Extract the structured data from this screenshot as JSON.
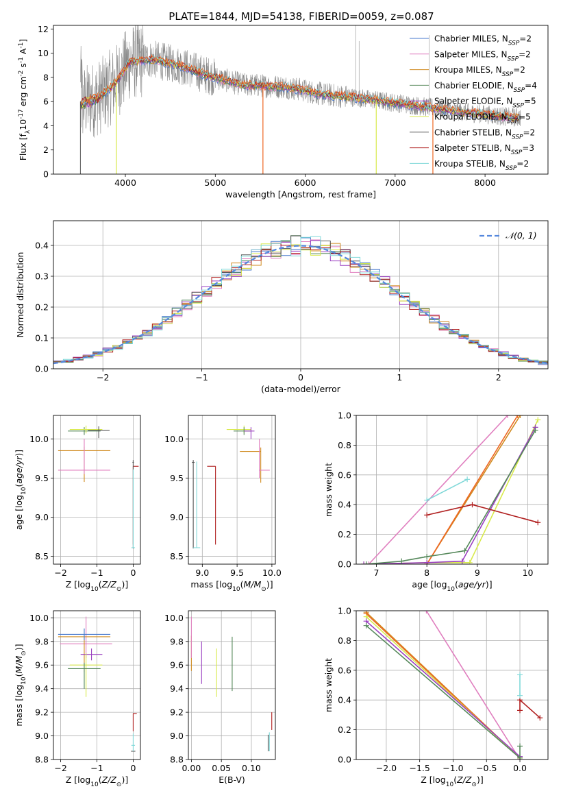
{
  "figure": {
    "title": "PLATE=1844, MJD=54138, FIBERID=0059, z=0.087"
  },
  "colors": {
    "Chabrier MILES": "#4477cc",
    "Salpeter MILES": "#e07fbf",
    "Kroupa MILES": "#d08a1e",
    "Chabrier ELODIE": "#55885a",
    "Salpeter ELODIE": "#9a3fc0",
    "Kroupa ELODIE": "#d8ea4a",
    "Chabrier STELIB": "#555555",
    "Salpeter STELIB": "#b01f1f",
    "Kroupa STELIB": "#7fd8d8",
    "orange_model": "#ee6622",
    "spectrum_gray": "#888888",
    "gaussian": "#5588dd"
  },
  "chart_data": [
    {
      "id": "spectrum",
      "type": "line",
      "xlabel": "wavelength [Angstrom, rest frame]",
      "ylabel_parts": [
        "Flux [f",
        "λ",
        "10",
        "-17",
        " erg cm",
        "-2",
        " s",
        "-1",
        " A",
        "-1",
        "]"
      ],
      "xlim": [
        3200,
        8700
      ],
      "ylim": [
        0,
        12.3
      ],
      "xticks": [
        4000,
        5000,
        6000,
        7000,
        8000
      ],
      "yticks": [
        0,
        2,
        4,
        6,
        8,
        10,
        12
      ],
      "continuum_anchors": [
        [
          3500,
          5.8
        ],
        [
          3700,
          6.3
        ],
        [
          3900,
          7.6
        ],
        [
          4050,
          9.3
        ],
        [
          4300,
          9.5
        ],
        [
          4600,
          9.0
        ],
        [
          4900,
          8.2
        ],
        [
          5300,
          7.4
        ],
        [
          5800,
          7.2
        ],
        [
          6200,
          6.6
        ],
        [
          6600,
          6.3
        ],
        [
          7000,
          5.9
        ],
        [
          7400,
          5.5
        ],
        [
          7800,
          5.1
        ],
        [
          8300,
          4.7
        ]
      ],
      "model_dips": [
        [
          3900,
          "Kroupa ELODIE"
        ],
        [
          5530,
          "orange_model"
        ],
        [
          6790,
          "Kroupa ELODIE"
        ],
        [
          7420,
          "orange_model"
        ]
      ],
      "legend": {
        "placement": "upper right",
        "entries": [
          {
            "label": "Chabrier MILES",
            "n": "2"
          },
          {
            "label": "Salpeter MILES",
            "n": "2"
          },
          {
            "label": "Kroupa MILES",
            "n": "2"
          },
          {
            "label": "Chabrier ELODIE",
            "n": "4"
          },
          {
            "label": "Salpeter ELODIE",
            "n": "5"
          },
          {
            "label": "Kroupa ELODIE",
            "n": "5"
          },
          {
            "label": "Chabrier STELIB",
            "n": "2"
          },
          {
            "label": "Salpeter STELIB",
            "n": "3"
          },
          {
            "label": "Kroupa STELIB",
            "n": "2"
          }
        ],
        "n_prefix": "N",
        "n_sub": "SSP"
      }
    },
    {
      "id": "residuals",
      "type": "histogram",
      "xlabel": "(data-model)/error",
      "ylabel": "Normed distribution",
      "xlim": [
        -2.5,
        2.5
      ],
      "ylim": [
        0,
        0.48
      ],
      "xticks": [
        -2,
        -1,
        0,
        1,
        2
      ],
      "yticks": [
        0.0,
        0.1,
        0.2,
        0.3,
        0.4
      ],
      "bin_width": 0.1,
      "bin_start": -2.5,
      "legend": {
        "label": "𝒩(0, 1)",
        "placement": "upper right",
        "style": "dashed"
      }
    },
    {
      "id": "age_vs_Z",
      "type": "errorbar",
      "xlabel": "Z [log10(Z/Z⊙)]",
      "ylabel": "age  [log10(age/yr)]",
      "xlim": [
        -2.2,
        0.2
      ],
      "ylim": [
        8.4,
        10.3
      ],
      "xticks": [
        -2,
        -1,
        0
      ],
      "yticks": [
        8.5,
        9.0,
        9.5,
        10.0
      ],
      "points": [
        {
          "model": "Kroupa MILES",
          "x": -1.35,
          "y": 9.85,
          "xerr": [
            0.72,
            0.72
          ],
          "yerr": [
            0.4,
            0.05
          ]
        },
        {
          "model": "Salpeter MILES",
          "x": -1.35,
          "y": 9.6,
          "xerr": [
            0.72,
            0.72
          ],
          "yerr": [
            0.05,
            0.4
          ]
        },
        {
          "model": "Chabrier ELODIE",
          "x": -1.35,
          "y": 10.1,
          "xerr": [
            0.45,
            0.45
          ],
          "yerr": [
            0.05,
            0.05
          ]
        },
        {
          "model": "Kroupa ELODIE",
          "x": -1.3,
          "y": 10.12,
          "xerr": [
            0.45,
            0.45
          ],
          "yerr": [
            0.05,
            0.05
          ]
        },
        {
          "model": "Chabrier STELIB",
          "x": -0.95,
          "y": 10.11,
          "xerr": [
            0.3,
            0.3
          ],
          "yerr": [
            0.1,
            0.05
          ]
        },
        {
          "model": "Salpeter STELIB",
          "x": 0.0,
          "y": 9.65,
          "xerr": [
            0.0,
            0.15
          ],
          "yerr": [
            1.0,
            0.0
          ]
        },
        {
          "model": "Chabrier STELIB",
          "x": 0.0,
          "y": 9.7,
          "xerr": [
            0.02,
            0.02
          ],
          "yerr": [
            1.1,
            0.03
          ]
        },
        {
          "model": "Kroupa STELIB",
          "x": 0.0,
          "y": 8.61,
          "xerr": [
            0.05,
            0.05
          ],
          "yerr": [
            0.0,
            1.0
          ]
        }
      ]
    },
    {
      "id": "age_vs_mass",
      "type": "errorbar",
      "xlabel": "mass [log10(M/M⊙)]",
      "ylabel": "",
      "xlim": [
        8.8,
        10.05
      ],
      "ylim": [
        8.4,
        10.3
      ],
      "xticks": [
        9.0,
        9.5,
        10.0
      ],
      "yticks": [
        8.5,
        9.0,
        9.5,
        10.0
      ],
      "points": [
        {
          "model": "Kroupa ELODIE",
          "x": 9.6,
          "y": 10.12,
          "xerr": [
            0.25,
            0.1
          ],
          "yerr": [
            0.05,
            0.05
          ]
        },
        {
          "model": "Chabrier ELODIE",
          "x": 9.6,
          "y": 10.1,
          "xerr": [
            0.15,
            0.1
          ],
          "yerr": [
            0.05,
            0.05
          ]
        },
        {
          "model": "Salpeter ELODIE",
          "x": 9.7,
          "y": 10.1,
          "xerr": [
            0.1,
            0.05
          ],
          "yerr": [
            0.1,
            0.05
          ]
        },
        {
          "model": "Kroupa MILES",
          "x": 9.84,
          "y": 9.84,
          "xerr": [
            0.3,
            0.0
          ],
          "yerr": [
            0.4,
            0.05
          ]
        },
        {
          "model": "Salpeter MILES",
          "x": 9.82,
          "y": 9.6,
          "xerr": [
            0.0,
            0.15
          ],
          "yerr": [
            0.1,
            0.4
          ]
        },
        {
          "model": "Salpeter STELIB",
          "x": 9.19,
          "y": 9.65,
          "xerr": [
            0.12,
            0.0
          ],
          "yerr": [
            1.0,
            0.0
          ]
        },
        {
          "model": "Chabrier STELIB",
          "x": 8.87,
          "y": 9.7,
          "xerr": [
            0.02,
            0.02
          ],
          "yerr": [
            1.1,
            0.03
          ]
        },
        {
          "model": "Kroupa STELIB",
          "x": 8.92,
          "y": 8.61,
          "xerr": [
            0.05,
            0.05
          ],
          "yerr": [
            0.0,
            1.1
          ]
        }
      ]
    },
    {
      "id": "weight_vs_age",
      "type": "line",
      "xlabel": "age  [log10(age/yr)]",
      "ylabel": "mass weight",
      "xlim": [
        6.6,
        10.4
      ],
      "ylim": [
        0,
        1.0
      ],
      "xticks": [
        7,
        8,
        9,
        10
      ],
      "yticks": [
        0.0,
        0.2,
        0.4,
        0.6,
        0.8,
        1.0
      ],
      "series": [
        {
          "model": "Salpeter MILES",
          "x": [
            6.85,
            9.6
          ],
          "y": [
            0.0,
            1.0
          ]
        },
        {
          "model": "Kroupa MILES",
          "x": [
            8.0,
            9.85
          ],
          "y": [
            0.0,
            1.0
          ]
        },
        {
          "model": "orange_model",
          "x": [
            8.0,
            9.8
          ],
          "y": [
            0.0,
            1.0
          ]
        },
        {
          "model": "Kroupa ELODIE",
          "x": [
            6.75,
            8.0,
            8.85,
            10.2
          ],
          "y": [
            0.0,
            0.01,
            0.01,
            0.97
          ]
        },
        {
          "model": "Salpeter ELODIE",
          "x": [
            6.75,
            8.0,
            8.7,
            10.15
          ],
          "y": [
            0.0,
            0.01,
            0.02,
            0.92
          ]
        },
        {
          "model": "Chabrier ELODIE",
          "x": [
            6.8,
            7.5,
            8.0,
            8.75,
            10.15
          ],
          "y": [
            0.0,
            0.02,
            0.05,
            0.09,
            0.9
          ]
        },
        {
          "model": "Salpeter STELIB",
          "x": [
            8.0,
            8.9,
            10.2
          ],
          "y": [
            0.33,
            0.4,
            0.28
          ]
        },
        {
          "model": "Kroupa STELIB",
          "x": [
            8.0,
            8.8
          ],
          "y": [
            0.43,
            0.57
          ]
        }
      ]
    },
    {
      "id": "mass_vs_Z",
      "type": "errorbar",
      "xlabel": "Z [log10(Z/Z⊙)]",
      "ylabel": "mass [log10(M/M⊙)]",
      "xlim": [
        -2.2,
        0.2
      ],
      "ylim": [
        8.8,
        10.06
      ],
      "xticks": [
        -2,
        -1,
        0
      ],
      "yticks": [
        8.8,
        9.0,
        9.2,
        9.4,
        9.6,
        9.8,
        10.0
      ],
      "points": [
        {
          "model": "Salpeter MILES",
          "x": -1.3,
          "y": 9.78,
          "xerr": [
            0.72,
            0.72
          ],
          "yerr": [
            0.12,
            0.23
          ]
        },
        {
          "model": "Kroupa MILES",
          "x": -1.35,
          "y": 9.84,
          "xerr": [
            0.72,
            0.72
          ],
          "yerr": [
            0.3,
            0.0
          ]
        },
        {
          "model": "Chabrier MILES",
          "x": -1.35,
          "y": 9.86,
          "xerr": [
            0.72,
            0.72
          ],
          "yerr": [
            0.05,
            0.05
          ]
        },
        {
          "model": "Salpeter ELODIE",
          "x": -1.15,
          "y": 9.69,
          "xerr": [
            0.3,
            0.3
          ],
          "yerr": [
            0.05,
            0.05
          ]
        },
        {
          "model": "Kroupa ELODIE",
          "x": -1.3,
          "y": 9.6,
          "xerr": [
            0.45,
            0.45
          ],
          "yerr": [
            0.27,
            0.1
          ]
        },
        {
          "model": "Chabrier ELODIE",
          "x": -1.35,
          "y": 9.57,
          "xerr": [
            0.45,
            0.45
          ],
          "yerr": [
            0.17,
            0.05
          ]
        },
        {
          "model": "Salpeter STELIB",
          "x": 0.0,
          "y": 9.19,
          "xerr": [
            0.0,
            0.1
          ],
          "yerr": [
            0.15,
            0.0
          ]
        },
        {
          "model": "Chabrier STELIB",
          "x": 0.0,
          "y": 8.87,
          "xerr": [
            0.06,
            0.06
          ],
          "yerr": [
            0.0,
            0.0
          ]
        },
        {
          "model": "Kroupa STELIB",
          "x": 0.0,
          "y": 8.92,
          "xerr": [
            0.05,
            0.05
          ],
          "yerr": [
            0.05,
            0.1
          ]
        }
      ]
    },
    {
      "id": "mass_vs_ebv",
      "type": "errorbar",
      "xlabel": "E(B-V)",
      "ylabel": "",
      "xlim": [
        -0.005,
        0.14
      ],
      "ylim": [
        8.8,
        10.06
      ],
      "xticks": [
        0.0,
        0.05,
        0.1
      ],
      "yticks": [
        8.8,
        9.0,
        9.2,
        9.4,
        9.6,
        9.8,
        10.0
      ],
      "points": [
        {
          "model": "Kroupa MILES",
          "x": 0.0,
          "y": 9.85,
          "xerr": [
            0,
            0
          ],
          "yerr": [
            0.3,
            0.0
          ]
        },
        {
          "model": "Salpeter MILES",
          "x": 0.0,
          "y": 9.78,
          "xerr": [
            0,
            0
          ],
          "yerr": [
            0.12,
            0.23
          ]
        },
        {
          "model": "Salpeter ELODIE",
          "x": 0.017,
          "y": 9.7,
          "xerr": [
            0,
            0
          ],
          "yerr": [
            0.26,
            0.1
          ]
        },
        {
          "model": "Kroupa ELODIE",
          "x": 0.042,
          "y": 9.6,
          "xerr": [
            0,
            0
          ],
          "yerr": [
            0.27,
            0.14
          ]
        },
        {
          "model": "Chabrier ELODIE",
          "x": 0.068,
          "y": 9.6,
          "xerr": [
            0,
            0
          ],
          "yerr": [
            0.22,
            0.24
          ]
        },
        {
          "model": "Chabrier STELIB",
          "x": 0.128,
          "y": 8.95,
          "xerr": [
            0,
            0
          ],
          "yerr": [
            0.08,
            0.06
          ]
        },
        {
          "model": "Kroupa STELIB",
          "x": 0.13,
          "y": 8.95,
          "xerr": [
            0,
            0
          ],
          "yerr": [
            0.08,
            0.08
          ]
        },
        {
          "model": "Salpeter STELIB",
          "x": 0.134,
          "y": 9.13,
          "xerr": [
            0,
            0
          ],
          "yerr": [
            0.08,
            0.07
          ]
        }
      ]
    },
    {
      "id": "weight_vs_Z",
      "type": "line",
      "xlabel": "Z [log10(Z/Z⊙)]",
      "ylabel": "mass weight",
      "xlim": [
        -2.45,
        0.42
      ],
      "ylim": [
        0,
        1.0
      ],
      "xticks": [
        -2.0,
        -1.5,
        -1.0,
        -0.5,
        0.0
      ],
      "yticks": [
        0.0,
        0.2,
        0.4,
        0.6,
        0.8,
        1.0
      ],
      "series": [
        {
          "model": "Salpeter MILES",
          "x": [
            -1.4,
            0.0
          ],
          "y": [
            1.0,
            0.0
          ]
        },
        {
          "model": "Kroupa MILES",
          "x": [
            -2.3,
            0.0
          ],
          "y": [
            0.99,
            0.01
          ]
        },
        {
          "model": "orange_model",
          "x": [
            -2.3,
            0.0
          ],
          "y": [
            0.98,
            0.01
          ]
        },
        {
          "model": "Kroupa ELODIE",
          "x": [
            -2.3,
            0.0
          ],
          "y": [
            0.96,
            0.01
          ]
        },
        {
          "model": "Salpeter ELODIE",
          "x": [
            -2.3,
            0.0
          ],
          "y": [
            0.93,
            0.02
          ]
        },
        {
          "model": "Chabrier ELODIE",
          "x": [
            -2.3,
            0.0,
            0.0
          ],
          "y": [
            0.9,
            0.01,
            0.09
          ]
        },
        {
          "model": "Salpeter STELIB",
          "x": [
            0.0,
            0.0,
            0.3
          ],
          "y": [
            0.33,
            0.4,
            0.28
          ]
        },
        {
          "model": "Kroupa STELIB",
          "x": [
            0.0,
            0.0
          ],
          "y": [
            0.43,
            0.57
          ]
        }
      ]
    }
  ]
}
